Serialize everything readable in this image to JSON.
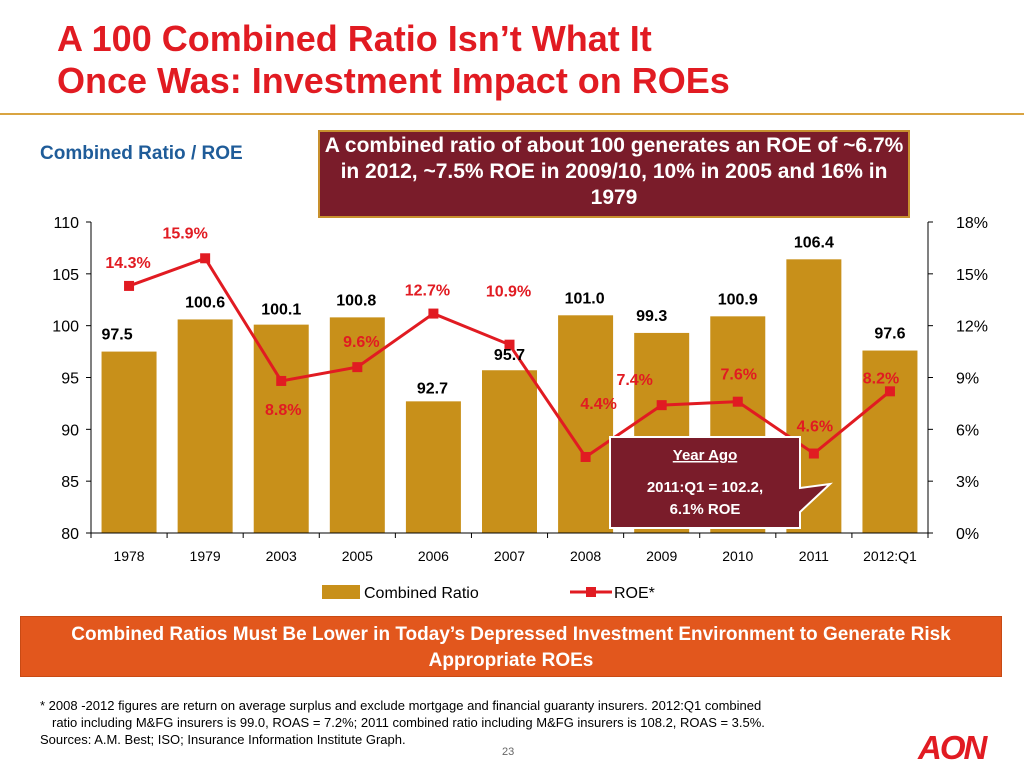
{
  "slide": {
    "title_line1": "A 100 Combined Ratio Isn’t What It",
    "title_line2": "Once Was: Investment Impact on ROEs",
    "subtitle": "Combined Ratio / ROE",
    "callout": "A combined ratio of about 100 generates an ROE of ~6.7% in 2012, ~7.5% ROE in 2009/10, 10% in 2005 and 16% in 1979",
    "year_ago_box": {
      "heading": "Year Ago",
      "line1": "2011:Q1 = 102.2,",
      "line2": "6.1% ROE"
    },
    "banner": "Combined Ratios Must Be Lower in Today’s Depressed Investment Environment to Generate Risk Appropriate ROEs",
    "footnote_line1": "* 2008 -2012 figures  are return on average surplus and exclude mortgage and financial guaranty insurers. 2012:Q1 combined",
    "footnote_line2": "ratio including M&FG insurers is 99.0, ROAS = 7.2%; 2011 combined ratio including M&FG insurers is 108.2, ROAS = 3.5%.",
    "sources": "Sources: A.M. Best; ISO; Insurance Information Institute Graph.",
    "page_number": "23",
    "logo": "AON"
  },
  "colors": {
    "title": "#e11b22",
    "bar": "#c8901a",
    "roe_line": "#e11b22",
    "callout_bg": "#7a1c2a",
    "banner_bg": "#e2571d",
    "subtitle": "#1f5c99"
  },
  "chart_data": {
    "type": "bar",
    "categories": [
      "1978",
      "1979",
      "2003",
      "2005",
      "2006",
      "2007",
      "2008",
      "2009",
      "2010",
      "2011",
      "2012:Q1"
    ],
    "series": [
      {
        "name": "Combined Ratio",
        "type": "bar",
        "axis": "left",
        "values": [
          97.5,
          100.6,
          100.1,
          100.8,
          92.7,
          95.7,
          101.0,
          99.3,
          100.9,
          106.4,
          97.6
        ],
        "labels": [
          "97.5",
          "100.6",
          "100.1",
          "100.8",
          "92.7",
          "95.7",
          "101.0",
          "99.3",
          "100.9",
          "106.4",
          "97.6"
        ]
      },
      {
        "name": "ROE*",
        "type": "line",
        "axis": "right",
        "values": [
          14.3,
          15.9,
          8.8,
          9.6,
          12.7,
          10.9,
          4.4,
          7.4,
          7.6,
          4.6,
          8.2
        ],
        "labels": [
          "14.3%",
          "15.9%",
          "8.8%",
          "9.6%",
          "12.7%",
          "10.9%",
          "4.4%",
          "7.4%",
          "7.6%",
          "4.6%",
          "8.2%"
        ]
      }
    ],
    "y_left": {
      "min": 80,
      "max": 110,
      "ticks": [
        "80",
        "85",
        "90",
        "95",
        "100",
        "105",
        "110"
      ]
    },
    "y_right": {
      "min": 0,
      "max": 18,
      "ticks": [
        "0%",
        "3%",
        "6%",
        "9%",
        "12%",
        "15%",
        "18%"
      ]
    },
    "legend_position": "bottom",
    "grid": false
  }
}
